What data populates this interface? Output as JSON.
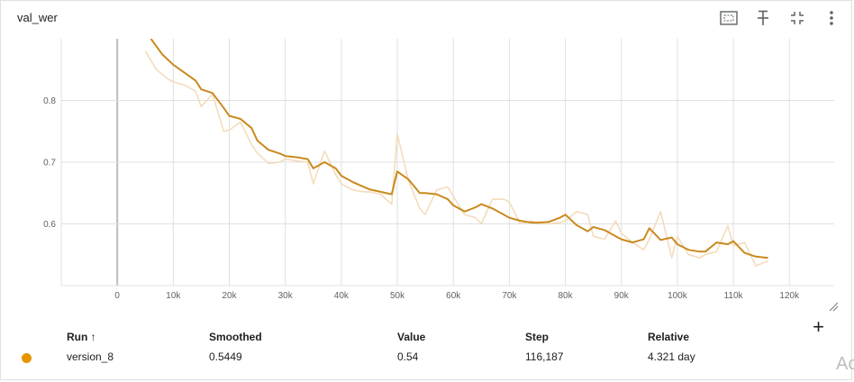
{
  "card": {
    "title": "val_wer",
    "toolbar": {
      "fit_icon": "fit-domain-icon",
      "pin_icon": "pin-icon",
      "collapse_icon": "collapse-icon",
      "more_icon": "more-vert-icon"
    }
  },
  "table": {
    "headers": {
      "run": "Run ↑",
      "smoothed": "Smoothed",
      "value": "Value",
      "step": "Step",
      "relative": "Relative"
    },
    "row": {
      "run": "version_8",
      "smoothed": "0.5449",
      "value": "0.54",
      "step": "116,187",
      "relative": "4.321 day",
      "color": "#e69500"
    },
    "add_label": "+"
  },
  "corner_text": "Ac",
  "colors": {
    "smoothed_line": "#c98a1e",
    "raw_line": "#f4dcbc",
    "grid": "#e0e0e0",
    "axis_line": "#bdbdbd"
  },
  "chart_data": {
    "type": "line",
    "title": "val_wer",
    "xlabel": "",
    "ylabel": "",
    "xlim": [
      -10000,
      128000
    ],
    "ylim": [
      0.5,
      0.9
    ],
    "grid": true,
    "x_ticks": [
      0,
      10000,
      20000,
      30000,
      40000,
      50000,
      60000,
      70000,
      80000,
      90000,
      100000,
      110000,
      120000
    ],
    "x_tick_labels": [
      "0",
      "10k",
      "20k",
      "30k",
      "40k",
      "50k",
      "60k",
      "70k",
      "80k",
      "90k",
      "100k",
      "110k",
      "120k"
    ],
    "y_ticks": [
      0.6,
      0.7,
      0.8
    ],
    "y_tick_labels": [
      "0.6",
      "0.7",
      "0.8"
    ],
    "series": [
      {
        "name": "version_8",
        "kind": "raw",
        "x": [
          5000,
          7000,
          9000,
          10000,
          12000,
          14000,
          15000,
          17000,
          19000,
          20000,
          22000,
          24000,
          25000,
          27000,
          29000,
          30000,
          32000,
          34000,
          35000,
          37000,
          39000,
          40000,
          42000,
          44000,
          45000,
          47000,
          49000,
          50000,
          52000,
          54000,
          55000,
          57000,
          59000,
          60000,
          62000,
          64000,
          65000,
          67000,
          69000,
          70000,
          72000,
          74000,
          75000,
          77000,
          79000,
          80000,
          82000,
          84000,
          85000,
          87000,
          89000,
          90000,
          92000,
          94000,
          95000,
          97000,
          99000,
          100000,
          102000,
          104000,
          105000,
          107000,
          109000,
          110000,
          112000,
          114000,
          116187
        ],
        "y": [
          0.88,
          0.85,
          0.835,
          0.83,
          0.825,
          0.815,
          0.79,
          0.81,
          0.75,
          0.752,
          0.765,
          0.728,
          0.715,
          0.698,
          0.7,
          0.705,
          0.702,
          0.7,
          0.665,
          0.718,
          0.68,
          0.665,
          0.655,
          0.652,
          0.652,
          0.648,
          0.632,
          0.745,
          0.67,
          0.625,
          0.615,
          0.655,
          0.66,
          0.645,
          0.615,
          0.61,
          0.6,
          0.64,
          0.64,
          0.635,
          0.6,
          0.605,
          0.6,
          0.6,
          0.602,
          0.605,
          0.62,
          0.615,
          0.58,
          0.575,
          0.605,
          0.585,
          0.57,
          0.558,
          0.575,
          0.62,
          0.545,
          0.58,
          0.55,
          0.545,
          0.55,
          0.555,
          0.597,
          0.565,
          0.57,
          0.532,
          0.54
        ]
      },
      {
        "name": "version_8",
        "kind": "smoothed",
        "x": [
          6000,
          8000,
          10000,
          12000,
          14000,
          15000,
          17000,
          19000,
          20000,
          22000,
          24000,
          25000,
          27000,
          29000,
          30000,
          32000,
          34000,
          35000,
          37000,
          39000,
          40000,
          42000,
          44000,
          45000,
          47000,
          49000,
          50000,
          52000,
          54000,
          55000,
          57000,
          59000,
          60000,
          62000,
          64000,
          65000,
          67000,
          69000,
          70000,
          72000,
          74000,
          75000,
          77000,
          79000,
          80000,
          82000,
          84000,
          85000,
          87000,
          89000,
          90000,
          92000,
          94000,
          95000,
          97000,
          99000,
          100000,
          102000,
          104000,
          105000,
          107000,
          109000,
          110000,
          112000,
          114000,
          116187
        ],
        "y": [
          0.9,
          0.875,
          0.858,
          0.845,
          0.832,
          0.818,
          0.812,
          0.788,
          0.775,
          0.77,
          0.755,
          0.735,
          0.72,
          0.714,
          0.71,
          0.708,
          0.705,
          0.69,
          0.7,
          0.69,
          0.678,
          0.668,
          0.66,
          0.656,
          0.652,
          0.648,
          0.685,
          0.672,
          0.65,
          0.65,
          0.648,
          0.64,
          0.63,
          0.62,
          0.627,
          0.632,
          0.625,
          0.615,
          0.61,
          0.605,
          0.602,
          0.602,
          0.603,
          0.61,
          0.615,
          0.598,
          0.588,
          0.595,
          0.59,
          0.58,
          0.575,
          0.57,
          0.575,
          0.593,
          0.574,
          0.578,
          0.567,
          0.558,
          0.555,
          0.555,
          0.57,
          0.567,
          0.572,
          0.553,
          0.547,
          0.5449
        ]
      }
    ]
  }
}
